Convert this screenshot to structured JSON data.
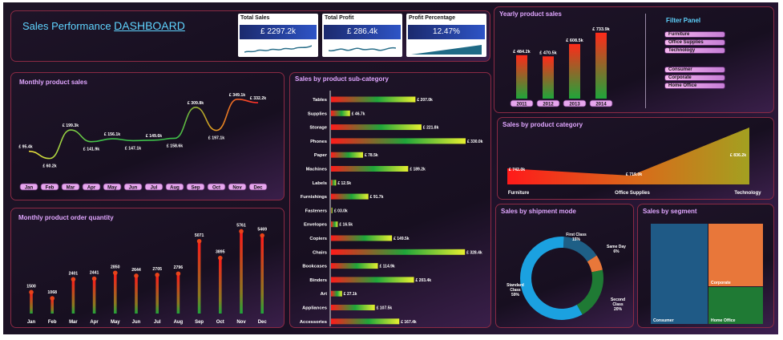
{
  "header": {
    "title_prefix": "Sales Performance ",
    "title_main": "DASHBOARD"
  },
  "kpis": [
    {
      "label": "Total Sales",
      "value": "£ 2297.2k"
    },
    {
      "label": "Total Profit",
      "value": "£ 286.4k"
    },
    {
      "label": "Profit Percentage",
      "value": "12.47%"
    }
  ],
  "yearly": {
    "title": "Yearly product sales",
    "chart_data": {
      "type": "bar",
      "categories": [
        "2011",
        "2012",
        "2013",
        "2014"
      ],
      "labels": [
        "£ 484.2k",
        "£ 470.5k",
        "£ 608.5k",
        "£ 733.9k"
      ],
      "values": [
        484.2,
        470.5,
        608.5,
        733.9
      ]
    }
  },
  "filter": {
    "title": "Filter Panel",
    "categories": [
      "Furniture",
      "Office Supplies",
      "Technology"
    ],
    "segments": [
      "Consumer",
      "Corporate",
      "Home Office"
    ]
  },
  "monthly_sales": {
    "title": "Monthly  product sales",
    "chart_data": {
      "type": "line",
      "categories": [
        "Jan",
        "Feb",
        "Mar",
        "Apr",
        "May",
        "Jun",
        "Jul",
        "Aug",
        "Sep",
        "Oct",
        "Nov",
        "Dec"
      ],
      "labels": [
        "£ 95.4k",
        "£ 60.2k",
        "£ 199.3k",
        "£ 141.9k",
        "£ 156.1k",
        "£ 147.1k",
        "£ 149.6k",
        "£ 158.6k",
        "£ 309.8k",
        "£ 197.1k",
        "£ 349.1k",
        "£ 332.2k"
      ],
      "values": [
        95.4,
        60.2,
        199.3,
        141.9,
        156.1,
        147.1,
        149.6,
        158.6,
        309.8,
        197.1,
        349.1,
        332.2
      ]
    }
  },
  "subcat": {
    "title": "Sales by product sub-category",
    "chart_data": {
      "type": "bar",
      "categories": [
        "Tables",
        "Supplies",
        "Storage",
        "Phones",
        "Paper",
        "Machines",
        "Labels",
        "Furnishings",
        "Fasteners",
        "Envelopes",
        "Copiers",
        "Chairs",
        "Bookcases",
        "Binders",
        "Art",
        "Appliances",
        "Accessories"
      ],
      "labels": [
        "£ 207.0k",
        "£ 46.7k",
        "£ 221.8k",
        "£ 330.0k",
        "£ 78.5k",
        "£ 189.2k",
        "£ 12.5k",
        "£ 91.7k",
        "£ 03.0k",
        "£ 16.5k",
        "£ 149.5k",
        "£ 328.4k",
        "£ 114.9k",
        "£ 203.4k",
        "£ 27.1k",
        "£ 107.5k",
        "£ 167.4k"
      ],
      "values": [
        207.0,
        46.7,
        221.8,
        330.0,
        78.5,
        189.2,
        12.5,
        91.7,
        3.0,
        16.5,
        149.5,
        328.4,
        114.9,
        203.4,
        27.1,
        107.5,
        167.4
      ]
    }
  },
  "category": {
    "title": "Sales by product category",
    "chart_data": {
      "type": "area",
      "categories": [
        "Furniture",
        "Office Supplies",
        "Technology"
      ],
      "labels": [
        "£ 742.0k",
        "£ 719.0k",
        "£ 836.2k"
      ],
      "values": [
        742.0,
        719.0,
        836.2
      ]
    }
  },
  "qty": {
    "title": "Monthly product order quantity",
    "chart_data": {
      "type": "bar",
      "categories": [
        "Jan",
        "Feb",
        "Mar",
        "Apr",
        "May",
        "Jun",
        "Jul",
        "Aug",
        "Sep",
        "Oct",
        "Nov",
        "Dec"
      ],
      "values": [
        1500,
        1068,
        2401,
        2441,
        2850,
        2644,
        2705,
        2796,
        5071,
        3895,
        5761,
        5469
      ]
    }
  },
  "shipment": {
    "title": "Sales by shipment mode",
    "chart_data": {
      "type": "pie",
      "categories": [
        "First Class",
        "Same Day",
        "Second Class",
        "Standard Class"
      ],
      "values": [
        15,
        6,
        20,
        59
      ],
      "labels": [
        "First Class\n15%",
        "Same Day\n6%",
        "Second\nClass\n20%",
        "Standard\nClass\n59%"
      ],
      "colors": [
        "#1e5f86",
        "#e8773a",
        "#1f7a34",
        "#1ba1e0"
      ]
    }
  },
  "segment": {
    "title": "Sales by segment",
    "chart_data": {
      "type": "treemap",
      "categories": [
        "Consumer",
        "Corporate",
        "Home Office"
      ],
      "colors": [
        "#1f5a86",
        "#e8773a",
        "#1f7a34"
      ]
    }
  }
}
